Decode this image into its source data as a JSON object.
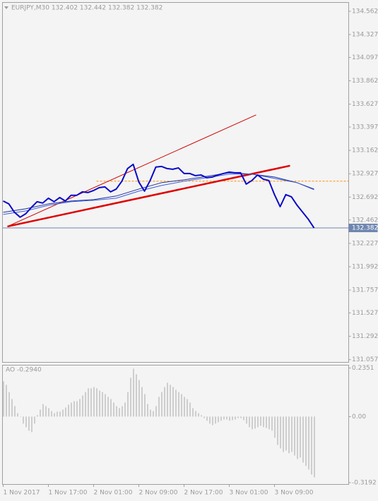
{
  "chart_data": [
    {
      "type": "line",
      "title": "EURJPY,M30 132.402 132.442 132.382 132.382",
      "xlim": [
        -0.25,
        122.25
      ],
      "ylim": [
        131.03,
        134.65
      ],
      "yticks": [
        134.562,
        134.327,
        134.097,
        133.862,
        133.627,
        133.397,
        133.162,
        132.927,
        132.692,
        132.462,
        132.227,
        131.992,
        131.757,
        131.527,
        131.292,
        131.057
      ],
      "series": [
        {
          "color": "#0a0ac8",
          "line_width": 2,
          "x": [
            0,
            2,
            4,
            6,
            8,
            10,
            12,
            14,
            16,
            18,
            20,
            22,
            24,
            26,
            28,
            30,
            32,
            34,
            36,
            38,
            40,
            42,
            44,
            46,
            48,
            50,
            52,
            54,
            56,
            58,
            60,
            62,
            64,
            66,
            68,
            70,
            72,
            74,
            76,
            78,
            80,
            82,
            84,
            86,
            88,
            90,
            92,
            94,
            96,
            98,
            100,
            102,
            104,
            106,
            108,
            110
          ],
          "values": [
            132.653,
            132.624,
            132.539,
            132.49,
            132.525,
            132.589,
            132.646,
            132.632,
            132.681,
            132.646,
            132.688,
            132.653,
            132.71,
            132.71,
            132.745,
            132.738,
            132.759,
            132.788,
            132.795,
            132.745,
            132.773,
            132.852,
            132.979,
            133.022,
            132.844,
            132.752,
            132.859,
            132.994,
            133.001,
            132.979,
            132.972,
            132.986,
            132.93,
            132.93,
            132.908,
            132.915,
            132.887,
            132.894,
            132.915,
            132.93,
            132.944,
            132.937,
            132.937,
            132.823,
            132.859,
            132.915,
            132.873,
            132.859,
            132.717,
            132.596,
            132.717,
            132.695,
            132.61,
            132.539,
            132.468,
            132.382
          ]
        },
        {
          "color": "#3c5adc",
          "line_width": 1,
          "x": [
            0,
            8,
            16,
            24,
            32,
            40,
            48,
            56,
            64,
            72,
            80,
            88,
            96,
            104,
            110
          ],
          "values": [
            132.518,
            132.553,
            132.61,
            132.646,
            132.66,
            132.681,
            132.752,
            132.809,
            132.852,
            132.887,
            132.923,
            132.923,
            132.88,
            132.837,
            132.766
          ]
        },
        {
          "color": "#1e2f9a",
          "line_width": 1,
          "x": [
            0,
            8,
            16,
            24,
            32,
            40,
            48,
            56,
            64,
            72,
            80,
            88,
            96,
            104,
            110
          ],
          "values": [
            132.539,
            132.575,
            132.624,
            132.653,
            132.667,
            132.703,
            132.773,
            132.837,
            132.866,
            132.901,
            132.937,
            132.923,
            132.894,
            132.837,
            132.773
          ]
        }
      ],
      "trendlines": [
        {
          "color": "#d00000",
          "line_width": 1,
          "x": [
            1.5,
            89.5
          ],
          "values": [
            132.397,
            133.519
          ]
        },
        {
          "color": "#e00000",
          "line_width": 2.5,
          "x": [
            1.5,
            101.5
          ],
          "values": [
            132.397,
            133.008
          ]
        }
      ],
      "hlines": [
        {
          "value": 132.852,
          "x_from": 33,
          "color": "#ff8c00",
          "dashed": true
        }
      ],
      "last_price": 132.382,
      "last_price_color": "#6f86b0"
    },
    {
      "type": "bar",
      "title": "AO -0.2940",
      "color": "#a8a8a8",
      "xlim": [
        -0.25,
        122.25
      ],
      "ylim": [
        -0.328,
        0.249
      ],
      "yticks": [
        0.2351,
        {
          "value": 0,
          "label": "0.00"
        },
        -0.3192
      ],
      "xticks": [
        {
          "value": 0,
          "label": "1 Nov 2017"
        },
        {
          "value": 16,
          "label": "1 Nov 17:00"
        },
        {
          "value": 32,
          "label": "2 Nov 01:00"
        },
        {
          "value": 48,
          "label": "2 Nov 09:00"
        },
        {
          "value": 64,
          "label": "2 Nov 17:00"
        },
        {
          "value": 80,
          "label": "3 Nov 01:00"
        },
        {
          "value": 96,
          "label": "3 Nov 09:00"
        }
      ],
      "values": [
        0.171,
        0.154,
        0.119,
        0.085,
        0.051,
        0.017,
        0.002,
        -0.034,
        -0.051,
        -0.068,
        -0.075,
        -0.034,
        0.007,
        0.034,
        0.061,
        0.051,
        0.041,
        0.027,
        0.017,
        0.024,
        0.024,
        0.034,
        0.044,
        0.058,
        0.068,
        0.075,
        0.075,
        0.085,
        0.102,
        0.119,
        0.137,
        0.137,
        0.143,
        0.137,
        0.126,
        0.119,
        0.109,
        0.096,
        0.085,
        0.068,
        0.051,
        0.041,
        0.051,
        0.068,
        0.119,
        0.188,
        0.232,
        0.205,
        0.177,
        0.143,
        0.109,
        0.061,
        0.034,
        0.027,
        0.051,
        0.096,
        0.119,
        0.143,
        0.164,
        0.154,
        0.143,
        0.13,
        0.119,
        0.109,
        0.096,
        0.085,
        0.068,
        0.041,
        0.027,
        0.017,
        0.007,
        -0.007,
        -0.02,
        -0.034,
        -0.041,
        -0.034,
        -0.027,
        -0.02,
        -0.014,
        -0.014,
        -0.02,
        -0.017,
        -0.014,
        -0.007,
        -0.007,
        -0.017,
        -0.034,
        -0.051,
        -0.061,
        -0.058,
        -0.051,
        -0.044,
        -0.051,
        -0.055,
        -0.061,
        -0.068,
        -0.102,
        -0.137,
        -0.154,
        -0.171,
        -0.164,
        -0.177,
        -0.171,
        -0.188,
        -0.205,
        -0.198,
        -0.222,
        -0.239,
        -0.256,
        -0.28,
        -0.294
      ]
    }
  ]
}
